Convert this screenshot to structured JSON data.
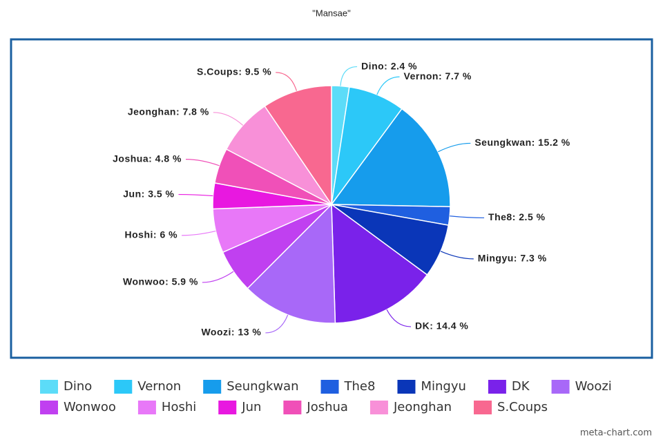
{
  "chart_data": {
    "type": "pie",
    "title": "\"Mansae\"",
    "categories": [
      "Dino",
      "Vernon",
      "Seungkwan",
      "The8",
      "Mingyu",
      "DK",
      "Woozi",
      "Wonwoo",
      "Hoshi",
      "Jun",
      "Joshua",
      "Jeonghan",
      "S.Coups"
    ],
    "values": [
      2.4,
      7.7,
      15.2,
      2.5,
      7.3,
      14.4,
      13,
      5.9,
      6,
      3.5,
      4.8,
      7.8,
      9.5
    ],
    "value_labels": [
      "Dino: 2.4 %",
      "Vernon: 7.7 %",
      "Seungkwan: 15.2 %",
      "The8: 2.5 %",
      "Mingyu: 7.3 %",
      "DK: 14.4 %",
      "Woozi: 13 %",
      "Wonwoo: 5.9 %",
      "Hoshi: 6 %",
      "Jun: 3.5 %",
      "Joshua: 4.8 %",
      "Jeonghan: 7.8 %",
      "S.Coups: 9.5 %"
    ],
    "colors": [
      "#5cdcf8",
      "#2cc8f8",
      "#169cec",
      "#1f5fe0",
      "#0a36b8",
      "#7a22ea",
      "#a868f8",
      "#c040f0",
      "#e878f8",
      "#e818e0",
      "#f050b8",
      "#f890d8",
      "#f86890"
    ],
    "legend": "bottom",
    "credit": "meta-chart.com"
  }
}
